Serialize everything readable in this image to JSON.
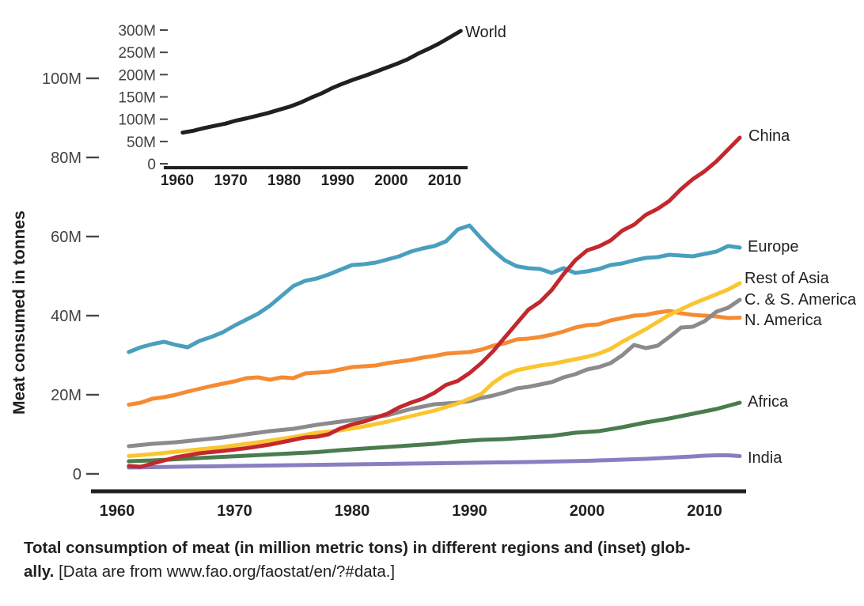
{
  "colors": {
    "axis": "#231f20",
    "tick_dash": "#4a4647",
    "text": "#231f20",
    "china_red": "#c2282e",
    "europe_blue": "#4a9fbe",
    "rest_of_asia_yellow": "#fbc530",
    "cs_america_gray": "#8b8b8d",
    "n_america_orange": "#f58b33",
    "africa_green": "#4a7c4e",
    "india_purple": "#8680c1",
    "world_black": "#231f20"
  },
  "figure": {
    "caption": {
      "line1_bold": "Total consumption of meat (in million metric tons) in different regions and (inset) glob-",
      "line2_bold": "ally.",
      "line2_regular": " [Data are from www.fao.org/faostat/en/?#data.]"
    }
  },
  "chart_data": [
    {
      "id": "main",
      "name": "meat-consumption-by-region",
      "type": "line",
      "title": "",
      "xlabel": "",
      "ylabel": "Meat consumed in tonnes",
      "unit": "million metric tons",
      "xlim": [
        1958,
        2014
      ],
      "ylim": [
        0,
        105
      ],
      "grid": false,
      "legend_position": "right-end-labels",
      "x_ticks": [
        {
          "label": "1960",
          "value": 1960
        },
        {
          "label": "1970",
          "value": 1970
        },
        {
          "label": "1980",
          "value": 1980
        },
        {
          "label": "1990",
          "value": 1990
        },
        {
          "label": "2000",
          "value": 2000
        },
        {
          "label": "2010",
          "value": 2010
        }
      ],
      "y_ticks": [
        {
          "label": "0",
          "value": 0
        },
        {
          "label": "20M",
          "value": 20
        },
        {
          "label": "40M",
          "value": 40
        },
        {
          "label": "60M",
          "value": 60
        },
        {
          "label": "80M",
          "value": 80
        },
        {
          "label": "100M",
          "value": 100
        }
      ],
      "series": [
        {
          "name": "India",
          "slug": "india",
          "color": "#8680c1",
          "years": [
            1961,
            1965,
            1970,
            1975,
            1980,
            1985,
            1990,
            1995,
            2000,
            2003,
            2005,
            2007,
            2009,
            2010,
            2011,
            2012,
            2013
          ],
          "values": [
            1.6,
            1.8,
            2.0,
            2.2,
            2.4,
            2.6,
            2.8,
            3.0,
            3.3,
            3.6,
            3.8,
            4.1,
            4.4,
            4.6,
            4.7,
            4.7,
            4.5
          ]
        },
        {
          "name": "Africa",
          "slug": "africa",
          "color": "#4a7c4e",
          "years": [
            1961,
            1963,
            1965,
            1967,
            1969,
            1971,
            1973,
            1975,
            1977,
            1979,
            1981,
            1983,
            1985,
            1987,
            1989,
            1991,
            1993,
            1995,
            1997,
            1999,
            2001,
            2003,
            2005,
            2007,
            2009,
            2010,
            2011,
            2012,
            2013
          ],
          "values": [
            3.2,
            3.4,
            3.7,
            4.0,
            4.3,
            4.6,
            4.9,
            5.2,
            5.5,
            6.0,
            6.4,
            6.8,
            7.2,
            7.6,
            8.2,
            8.6,
            8.8,
            9.2,
            9.6,
            10.4,
            10.8,
            11.8,
            13.0,
            14.0,
            15.2,
            15.8,
            16.4,
            17.2,
            18.0
          ]
        },
        {
          "name": "Europe",
          "slug": "europe",
          "color": "#4a9fbe",
          "years": [
            1961,
            1962,
            1963,
            1964,
            1965,
            1966,
            1967,
            1968,
            1969,
            1970,
            1971,
            1972,
            1973,
            1974,
            1975,
            1976,
            1977,
            1978,
            1979,
            1980,
            1981,
            1982,
            1983,
            1984,
            1985,
            1986,
            1987,
            1988,
            1989,
            1990,
            1991,
            1992,
            1993,
            1994,
            1995,
            1996,
            1997,
            1998,
            1999,
            2000,
            2001,
            2002,
            2003,
            2004,
            2005,
            2006,
            2007,
            2008,
            2009,
            2010,
            2011,
            2012,
            2013
          ],
          "values": [
            30.8,
            32.0,
            32.8,
            33.4,
            32.6,
            32.0,
            33.6,
            34.6,
            35.8,
            37.5,
            39.0,
            40.5,
            42.5,
            45.0,
            47.5,
            48.8,
            49.4,
            50.4,
            51.6,
            52.8,
            53.0,
            53.4,
            54.2,
            55.0,
            56.2,
            57.0,
            57.6,
            58.8,
            61.8,
            62.8,
            59.5,
            56.5,
            54.0,
            52.5,
            52.0,
            51.8,
            50.8,
            52.0,
            50.8,
            51.2,
            51.8,
            52.8,
            53.2,
            54.0,
            54.6,
            54.8,
            55.4,
            55.2,
            55.0,
            55.6,
            56.2,
            57.6,
            57.2
          ]
        },
        {
          "name": "N. America",
          "slug": "n-america",
          "color": "#f58b33",
          "years": [
            1961,
            1962,
            1963,
            1964,
            1965,
            1966,
            1967,
            1968,
            1969,
            1970,
            1971,
            1972,
            1973,
            1974,
            1975,
            1976,
            1977,
            1978,
            1979,
            1980,
            1981,
            1982,
            1983,
            1984,
            1985,
            1986,
            1987,
            1988,
            1989,
            1990,
            1991,
            1992,
            1993,
            1994,
            1995,
            1996,
            1997,
            1998,
            1999,
            2000,
            2001,
            2002,
            2003,
            2004,
            2005,
            2006,
            2007,
            2008,
            2009,
            2010,
            2011,
            2012,
            2013
          ],
          "values": [
            17.5,
            18.0,
            19.0,
            19.4,
            20.0,
            20.8,
            21.5,
            22.2,
            22.8,
            23.4,
            24.2,
            24.4,
            23.8,
            24.4,
            24.2,
            25.4,
            25.6,
            25.8,
            26.4,
            27.0,
            27.2,
            27.4,
            28.0,
            28.4,
            28.8,
            29.4,
            29.8,
            30.4,
            30.6,
            30.8,
            31.4,
            32.4,
            33.0,
            34.0,
            34.2,
            34.6,
            35.2,
            36.0,
            37.0,
            37.6,
            37.8,
            38.8,
            39.4,
            40.0,
            40.2,
            40.8,
            41.2,
            40.6,
            40.2,
            40.0,
            39.8,
            39.4,
            39.5
          ]
        },
        {
          "name": "C. & S. America",
          "slug": "cs-america",
          "color": "#8b8b8d",
          "years": [
            1961,
            1963,
            1965,
            1967,
            1969,
            1971,
            1973,
            1975,
            1977,
            1979,
            1981,
            1983,
            1984,
            1985,
            1986,
            1987,
            1988,
            1989,
            1990,
            1991,
            1992,
            1993,
            1994,
            1995,
            1996,
            1997,
            1998,
            1999,
            2000,
            2001,
            2002,
            2003,
            2004,
            2005,
            2006,
            2007,
            2008,
            2009,
            2010,
            2011,
            2012,
            2013
          ],
          "values": [
            7.0,
            7.6,
            8.0,
            8.6,
            9.2,
            10.0,
            10.8,
            11.4,
            12.4,
            13.2,
            14.0,
            14.8,
            15.6,
            16.4,
            17.0,
            17.6,
            17.8,
            18.0,
            18.4,
            19.2,
            19.8,
            20.6,
            21.6,
            22.0,
            22.6,
            23.2,
            24.4,
            25.2,
            26.4,
            27.0,
            28.0,
            30.0,
            32.6,
            31.8,
            32.4,
            34.6,
            37.0,
            37.2,
            38.6,
            41.0,
            42.0,
            44.0
          ]
        },
        {
          "name": "Rest of Asia",
          "slug": "rest-of-asia",
          "color": "#fbc530",
          "years": [
            1961,
            1963,
            1965,
            1967,
            1969,
            1971,
            1973,
            1975,
            1977,
            1979,
            1981,
            1983,
            1985,
            1987,
            1989,
            1990,
            1991,
            1992,
            1993,
            1994,
            1995,
            1996,
            1997,
            1998,
            1999,
            2000,
            2001,
            2002,
            2003,
            2004,
            2005,
            2006,
            2007,
            2008,
            2009,
            2010,
            2011,
            2012,
            2013
          ],
          "values": [
            4.5,
            5.0,
            5.6,
            6.2,
            6.8,
            7.6,
            8.4,
            9.3,
            10.4,
            11.0,
            12.0,
            13.2,
            14.6,
            16.0,
            17.8,
            19.0,
            20.2,
            23.0,
            25.0,
            26.2,
            26.8,
            27.4,
            27.8,
            28.4,
            29.0,
            29.6,
            30.4,
            31.6,
            33.4,
            35.0,
            36.6,
            38.4,
            40.2,
            41.6,
            43.0,
            44.2,
            45.4,
            46.6,
            48.2
          ]
        },
        {
          "name": "China",
          "slug": "china",
          "color": "#c2282e",
          "years": [
            1961,
            1962,
            1963,
            1965,
            1967,
            1969,
            1971,
            1973,
            1975,
            1976,
            1977,
            1978,
            1979,
            1980,
            1981,
            1982,
            1983,
            1984,
            1985,
            1986,
            1987,
            1988,
            1989,
            1990,
            1991,
            1992,
            1993,
            1994,
            1995,
            1996,
            1997,
            1998,
            1999,
            2000,
            2001,
            2002,
            2003,
            2004,
            2005,
            2006,
            2007,
            2008,
            2009,
            2010,
            2011,
            2012,
            2013
          ],
          "values": [
            2.0,
            1.8,
            2.6,
            4.2,
            5.2,
            5.8,
            6.5,
            7.4,
            8.6,
            9.2,
            9.4,
            10.0,
            11.5,
            12.5,
            13.2,
            14.2,
            15.2,
            16.8,
            18.0,
            19.0,
            20.5,
            22.5,
            23.5,
            25.5,
            28.0,
            31.0,
            34.5,
            38.0,
            41.5,
            43.5,
            46.5,
            50.5,
            54.0,
            56.5,
            57.5,
            59.0,
            61.5,
            63.0,
            65.5,
            67.0,
            69.0,
            72.0,
            74.5,
            76.5,
            79.0,
            82.0,
            85.0
          ]
        }
      ]
    },
    {
      "id": "inset",
      "name": "world-total-inset",
      "type": "line",
      "title": "",
      "xlabel": "",
      "ylabel": "",
      "unit": "million metric tons",
      "xlim": [
        1958,
        2014
      ],
      "ylim": [
        0,
        320
      ],
      "grid": false,
      "legend_position": "right-end-labels",
      "x_ticks": [
        {
          "label": "1960",
          "value": 1960
        },
        {
          "label": "1970",
          "value": 1970
        },
        {
          "label": "1980",
          "value": 1980
        },
        {
          "label": "1990",
          "value": 1990
        },
        {
          "label": "2000",
          "value": 2000
        },
        {
          "label": "2010",
          "value": 2010
        }
      ],
      "y_ticks": [
        {
          "label": "0",
          "value": 0
        },
        {
          "label": "50M",
          "value": 50
        },
        {
          "label": "100M",
          "value": 100
        },
        {
          "label": "150M",
          "value": 150
        },
        {
          "label": "200M",
          "value": 200
        },
        {
          "label": "250M",
          "value": 250
        },
        {
          "label": "300M",
          "value": 300
        }
      ],
      "series": [
        {
          "name": "World",
          "slug": "world",
          "color": "#231f20",
          "years": [
            1961,
            1963,
            1965,
            1967,
            1969,
            1971,
            1973,
            1975,
            1977,
            1979,
            1981,
            1983,
            1985,
            1987,
            1989,
            1991,
            1993,
            1995,
            1997,
            1999,
            2001,
            2003,
            2005,
            2007,
            2009,
            2011,
            2013
          ],
          "values": [
            70,
            74,
            80,
            85,
            90,
            97,
            102,
            108,
            114,
            121,
            128,
            137,
            148,
            158,
            170,
            180,
            189,
            197,
            206,
            215,
            224,
            234,
            247,
            258,
            270,
            284,
            298
          ]
        }
      ]
    }
  ]
}
